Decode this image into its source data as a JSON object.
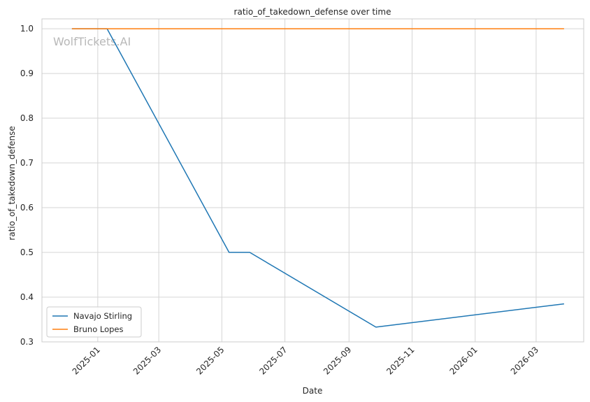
{
  "chart_data": {
    "type": "line",
    "title": "ratio_of_takedown_defense over time",
    "xlabel": "Date",
    "ylabel": "ratio_of_takedown_defense",
    "watermark": "WolfTickets.AI",
    "x_axis_type": "date",
    "xlim": [
      "2024-11-08",
      "2026-04-16"
    ],
    "ylim": [
      0.3,
      1.022
    ],
    "x_ticks": [
      "2025-01-01",
      "2025-03-01",
      "2025-05-01",
      "2025-07-01",
      "2025-09-01",
      "2025-11-01",
      "2026-01-01",
      "2026-03-01"
    ],
    "x_tick_labels": [
      "2025-01",
      "2025-03",
      "2025-05",
      "2025-07",
      "2025-09",
      "2025-11",
      "2026-01",
      "2026-03"
    ],
    "y_ticks": [
      0.3,
      0.4,
      0.5,
      0.6,
      0.7,
      0.8,
      0.9,
      1.0
    ],
    "y_tick_labels": [
      "0.3",
      "0.4",
      "0.5",
      "0.6",
      "0.7",
      "0.8",
      "0.9",
      "1.0"
    ],
    "grid": true,
    "legend_position": "lower-left",
    "series": [
      {
        "name": "Navajo Stirling",
        "color": "#1f77b4",
        "points": [
          {
            "x": "2024-12-07",
            "y": 1.0
          },
          {
            "x": "2025-01-10",
            "y": 1.0
          },
          {
            "x": "2025-05-08",
            "y": 0.5
          },
          {
            "x": "2025-05-28",
            "y": 0.5
          },
          {
            "x": "2025-09-27",
            "y": 0.333
          },
          {
            "x": "2026-03-28",
            "y": 0.385
          }
        ]
      },
      {
        "name": "Bruno Lopes",
        "color": "#ff7f0e",
        "points": [
          {
            "x": "2024-12-07",
            "y": 1.0
          },
          {
            "x": "2026-03-28",
            "y": 1.0
          }
        ]
      }
    ]
  }
}
